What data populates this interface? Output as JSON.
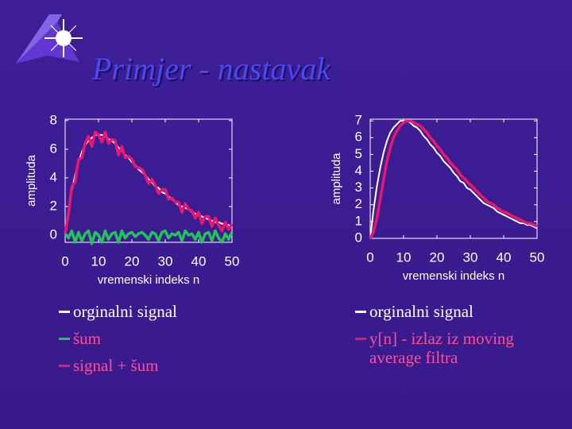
{
  "title": "Primjer - nastavak",
  "chart_data": [
    {
      "type": "line",
      "xlabel": "vremenski indeks n",
      "ylabel": "amplituda",
      "xlim": [
        0,
        50
      ],
      "xticks": [
        0,
        10,
        20,
        30,
        40,
        50
      ],
      "ylim": [
        -0.5,
        8.1
      ],
      "yticks": [
        0,
        2,
        4,
        6,
        8
      ],
      "x": [
        0,
        1,
        2,
        3,
        4,
        5,
        6,
        7,
        8,
        9,
        10,
        11,
        12,
        13,
        14,
        15,
        16,
        17,
        18,
        19,
        20,
        21,
        22,
        23,
        24,
        25,
        26,
        27,
        28,
        29,
        30,
        31,
        32,
        33,
        34,
        35,
        36,
        37,
        38,
        39,
        40,
        41,
        42,
        43,
        44,
        45,
        46,
        47,
        48,
        49,
        50
      ],
      "series": [
        {
          "name": "orginalni signal",
          "color": "#ffffff",
          "values": [
            0,
            1.7,
            3.1,
            4.2,
            5.1,
            5.8,
            6.3,
            6.6,
            6.8,
            7.0,
            7.0,
            7.0,
            6.9,
            6.7,
            6.6,
            6.4,
            6.1,
            5.9,
            5.6,
            5.4,
            5.1,
            4.9,
            4.6,
            4.4,
            4.2,
            3.9,
            3.7,
            3.4,
            3.3,
            3.0,
            2.9,
            2.7,
            2.5,
            2.3,
            2.1,
            2.0,
            1.9,
            1.8,
            1.6,
            1.5,
            1.4,
            1.3,
            1.2,
            1.1,
            1.0,
            0.9,
            0.9,
            0.8,
            0.8,
            0.7,
            0.6
          ]
        },
        {
          "name": "šum",
          "color": "#22c45a",
          "values": [
            0.1,
            -0.2,
            0.3,
            -0.5,
            0.2,
            -0.4,
            0.1,
            0.3,
            -0.6,
            0.2,
            0,
            -0.5,
            0.3,
            -0.3,
            0.1,
            0.2,
            -0.5,
            0.3,
            -0.2,
            0.1,
            0.2,
            -0.1,
            0.1,
            0.2,
            0,
            -0.3,
            0.2,
            0.1,
            -0.4,
            0.2,
            0.3,
            -0.2,
            0.1,
            0,
            0.2,
            -0.4,
            0.3,
            0,
            0.1,
            -0.3,
            0.2,
            -0.5,
            0.1,
            0.2,
            -0.4,
            0.3,
            -0.2,
            -0.5,
            0.1,
            -0.3,
            0.2
          ]
        },
        {
          "name": "signal + šum",
          "color": "#e8186e",
          "values": [
            0.1,
            1.5,
            3.4,
            3.7,
            5.3,
            5.4,
            6.4,
            6.9,
            6.2,
            7.2,
            7.0,
            6.5,
            7.2,
            6.4,
            6.7,
            6.6,
            5.6,
            6.2,
            5.4,
            5.5,
            5.3,
            4.8,
            4.7,
            4.6,
            4.2,
            3.6,
            3.9,
            3.5,
            2.9,
            3.2,
            3.2,
            2.5,
            2.6,
            2.3,
            2.3,
            1.6,
            2.2,
            1.8,
            1.7,
            1.2,
            1.6,
            0.8,
            1.3,
            1.3,
            0.6,
            1.2,
            0.7,
            0.3,
            0.9,
            0.4,
            0.8
          ]
        }
      ]
    },
    {
      "type": "line",
      "xlabel": "vremenski indeks n",
      "ylabel": "amplituda",
      "xlim": [
        0,
        50
      ],
      "xticks": [
        0,
        10,
        20,
        30,
        40,
        50
      ],
      "ylim": [
        0,
        7.1
      ],
      "yticks": [
        0,
        1,
        2,
        3,
        4,
        5,
        6,
        7
      ],
      "x": [
        0,
        1,
        2,
        3,
        4,
        5,
        6,
        7,
        8,
        9,
        10,
        11,
        12,
        13,
        14,
        15,
        16,
        17,
        18,
        19,
        20,
        21,
        22,
        23,
        24,
        25,
        26,
        27,
        28,
        29,
        30,
        31,
        32,
        33,
        34,
        35,
        36,
        37,
        38,
        39,
        40,
        41,
        42,
        43,
        44,
        45,
        46,
        47,
        48,
        49,
        50
      ],
      "series": [
        {
          "name": "orginalni signal",
          "color": "#ffffff",
          "values": [
            0,
            1.7,
            3.1,
            4.2,
            5.1,
            5.8,
            6.3,
            6.6,
            6.8,
            7.0,
            7.0,
            7.0,
            6.9,
            6.7,
            6.6,
            6.4,
            6.1,
            5.9,
            5.6,
            5.4,
            5.1,
            4.9,
            4.6,
            4.4,
            4.2,
            3.9,
            3.7,
            3.4,
            3.3,
            3.0,
            2.9,
            2.7,
            2.5,
            2.3,
            2.1,
            2.0,
            1.9,
            1.8,
            1.6,
            1.5,
            1.4,
            1.3,
            1.2,
            1.1,
            1.0,
            0.9,
            0.9,
            0.8,
            0.8,
            0.7,
            0.6
          ]
        },
        {
          "name": "y[n] - izlaz iz moving average filtra",
          "color": "#e8186e",
          "values": [
            0,
            0.4,
            1.2,
            2.3,
            3.5,
            4.6,
            5.4,
            6.0,
            6.4,
            6.7,
            6.9,
            7.0,
            7.0,
            6.9,
            6.8,
            6.7,
            6.5,
            6.3,
            6.0,
            5.8,
            5.5,
            5.3,
            5.0,
            4.8,
            4.5,
            4.3,
            4.1,
            3.8,
            3.6,
            3.4,
            3.2,
            3.0,
            2.8,
            2.6,
            2.4,
            2.2,
            2.1,
            2.0,
            1.8,
            1.7,
            1.6,
            1.5,
            1.4,
            1.3,
            1.2,
            1.1,
            1.0,
            0.9,
            0.9,
            0.8,
            0.7
          ]
        }
      ]
    }
  ]
}
